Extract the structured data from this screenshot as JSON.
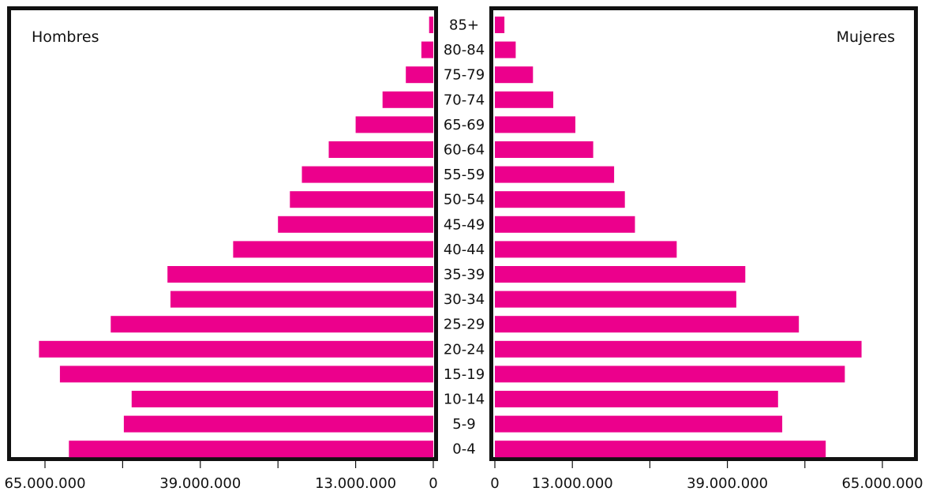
{
  "chart_data": {
    "type": "bar",
    "orientation": "horizontal",
    "layout": "population-pyramid",
    "categories": [
      "85+",
      "80-84",
      "75-79",
      "70-74",
      "65-69",
      "60-64",
      "55-59",
      "50-54",
      "45-49",
      "40-44",
      "35-39",
      "30-34",
      "25-29",
      "20-24",
      "15-19",
      "10-14",
      "5-9",
      "0-4"
    ],
    "series": [
      {
        "name": "Hombres",
        "side": "left",
        "values": [
          700000,
          2000000,
          4600000,
          8500000,
          13000000,
          17500000,
          22000000,
          24000000,
          26000000,
          33500000,
          44500000,
          44000000,
          54000000,
          66000000,
          62500000,
          50500000,
          51800000,
          61000000
        ]
      },
      {
        "name": "Mujeres",
        "side": "right",
        "values": [
          1600000,
          3500000,
          6400000,
          9800000,
          13500000,
          16500000,
          20000000,
          21800000,
          23500000,
          30500000,
          42000000,
          40500000,
          51000000,
          61500000,
          58700000,
          47500000,
          48200000,
          55500000
        ]
      }
    ],
    "xlim": [
      0,
      65000000
    ],
    "left_ticks": [
      "65.000.000",
      "39.000.000",
      "13.000.000",
      "0"
    ],
    "right_ticks": [
      "0",
      "13.000.000",
      "39.000.000",
      "65.000.000"
    ],
    "title": "",
    "xlabel": "",
    "ylabel": "",
    "grid": false,
    "legend": "panel-corners",
    "bar_color": "#ec008c"
  }
}
